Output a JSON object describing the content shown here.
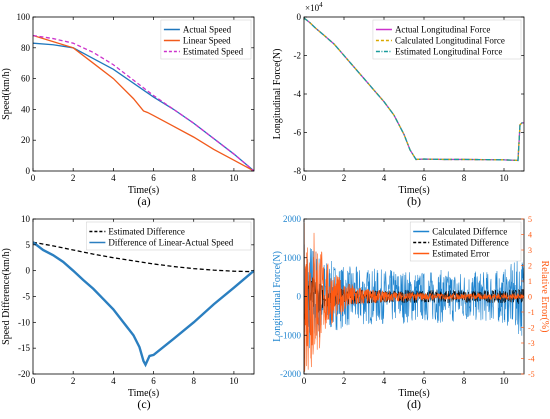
{
  "colors": {
    "actual": "#1f77bd",
    "linear": "#f15a1c",
    "estimated_speed": "#cc33cc",
    "force_actual": "#cc33cc",
    "force_calc": "#d9a800",
    "force_est": "#1a9c9c",
    "diff_est": "#000000",
    "diff_lin": "#2b7fc0",
    "d_calc": "#1f84cf",
    "d_est": "#000000",
    "d_err": "#ff5a12",
    "axis_left_d": "#1f84cf",
    "axis_right_d": "#ff5a12"
  },
  "chart_data": [
    {
      "id": "a",
      "type": "line",
      "caption": "(a)",
      "xlabel": "Time(s)",
      "ylabel": "Speed(km/h)",
      "xlim": [
        0,
        11
      ],
      "ylim": [
        0,
        100
      ],
      "xticks": [
        0,
        2,
        4,
        6,
        8,
        10
      ],
      "yticks": [
        0,
        20,
        40,
        60,
        80,
        100
      ],
      "legend_position": "top-right",
      "series": [
        {
          "name": "Actual Speed",
          "style": "solid",
          "color_key": "actual",
          "x": [
            0,
            1,
            2,
            3,
            4,
            5,
            6,
            7,
            8,
            9,
            10,
            11
          ],
          "y": [
            83,
            82,
            80,
            73,
            66,
            57,
            48,
            40,
            31,
            21,
            11,
            0
          ]
        },
        {
          "name": "Linear Speed",
          "style": "solid",
          "color_key": "linear",
          "x": [
            0,
            1,
            2,
            3,
            4,
            5,
            5.5,
            5.7,
            6,
            7,
            8,
            9,
            10,
            11
          ],
          "y": [
            88,
            84,
            80,
            70,
            60,
            47,
            39,
            38,
            36,
            29,
            22,
            14,
            7,
            0
          ]
        },
        {
          "name": "Estimated Speed",
          "style": "dashed",
          "color_key": "estimated_speed",
          "x": [
            0,
            1,
            2,
            3,
            4,
            5,
            6,
            7,
            8,
            9,
            10,
            11
          ],
          "y": [
            88,
            86,
            83,
            77,
            69,
            59,
            49,
            40,
            31,
            21,
            11,
            0
          ]
        }
      ]
    },
    {
      "id": "b",
      "type": "line",
      "caption": "(b)",
      "xlabel": "Time(s)",
      "ylabel": "Longitudinal Force(N)",
      "multiplier": "×10",
      "multiplier_exp": "4",
      "xlim": [
        0,
        11
      ],
      "ylim": [
        -8,
        0
      ],
      "xticks": [
        0,
        2,
        4,
        6,
        8,
        10
      ],
      "yticks": [
        -8,
        -6,
        -4,
        -2,
        0
      ],
      "legend_position": "top-right",
      "series": [
        {
          "name": "Actual Longitudinal Force",
          "style": "solid",
          "color_key": "force_actual",
          "x": [
            0,
            0.3,
            0.6,
            1,
            1.5,
            2,
            2.5,
            3,
            3.5,
            4,
            4.5,
            5,
            5.3,
            5.6,
            6,
            7,
            8,
            9,
            10,
            10.7,
            10.8,
            10.9,
            11
          ],
          "y": [
            -0.05,
            -0.3,
            -0.6,
            -0.95,
            -1.4,
            -2.0,
            -2.6,
            -3.2,
            -3.8,
            -4.4,
            -5.1,
            -6.1,
            -6.9,
            -7.4,
            -7.38,
            -7.4,
            -7.4,
            -7.41,
            -7.42,
            -7.45,
            -5.6,
            -5.5,
            -5.5
          ]
        },
        {
          "name": "Calculated Longitudinal Force",
          "style": "dashed",
          "color_key": "force_calc",
          "x": [
            0,
            0.3,
            0.6,
            1,
            1.5,
            2,
            2.5,
            3,
            3.5,
            4,
            4.5,
            5,
            5.3,
            5.6,
            6,
            7,
            8,
            9,
            10,
            10.7,
            10.8,
            10.9,
            11
          ],
          "y": [
            -0.05,
            -0.3,
            -0.6,
            -0.95,
            -1.4,
            -2.0,
            -2.6,
            -3.2,
            -3.8,
            -4.4,
            -5.1,
            -6.1,
            -6.9,
            -7.4,
            -7.38,
            -7.4,
            -7.4,
            -7.41,
            -7.42,
            -7.45,
            -5.6,
            -5.5,
            -5.5
          ]
        },
        {
          "name": "Estimated Longitudinal Force",
          "style": "dashdot",
          "color_key": "force_est",
          "x": [
            0,
            0.3,
            0.6,
            1,
            1.5,
            2,
            2.5,
            3,
            3.5,
            4,
            4.5,
            5,
            5.3,
            5.6,
            6,
            7,
            8,
            9,
            10,
            10.7,
            10.8,
            10.9,
            11
          ],
          "y": [
            -0.05,
            -0.3,
            -0.6,
            -0.95,
            -1.4,
            -2.0,
            -2.6,
            -3.2,
            -3.8,
            -4.4,
            -5.1,
            -6.1,
            -6.9,
            -7.4,
            -7.38,
            -7.4,
            -7.4,
            -7.41,
            -7.42,
            -7.45,
            -5.6,
            -5.5,
            -5.5
          ]
        }
      ]
    },
    {
      "id": "c",
      "type": "line",
      "caption": "(c)",
      "xlabel": "Time(s)",
      "ylabel": "Speed Difference(km/h)",
      "xlim": [
        0,
        11
      ],
      "ylim": [
        -20,
        10
      ],
      "xticks": [
        0,
        2,
        4,
        6,
        8,
        10
      ],
      "yticks": [
        -20,
        -15,
        -10,
        -5,
        0,
        5,
        10
      ],
      "legend_position": "top-right",
      "series": [
        {
          "name": "Estimated Difference",
          "style": "dashed",
          "color_key": "diff_est",
          "x": [
            0,
            1,
            2,
            3,
            4,
            5,
            6,
            7,
            8,
            9,
            10,
            11
          ],
          "y": [
            5.5,
            4.8,
            4.0,
            3.2,
            2.5,
            1.9,
            1.3,
            0.8,
            0.4,
            0.1,
            -0.1,
            -0.2
          ]
        },
        {
          "name": "Difference of Linear-Actual Speed",
          "style": "solid",
          "color_key": "diff_lin",
          "x": [
            0,
            0.5,
            1,
            1.5,
            2,
            2.5,
            3,
            3.5,
            4,
            4.5,
            5,
            5.3,
            5.5,
            5.6,
            5.8,
            6,
            7,
            8,
            9,
            10,
            11
          ],
          "y": [
            5.5,
            4.0,
            3.0,
            1.7,
            0,
            -1.8,
            -3.5,
            -5.5,
            -7.5,
            -10,
            -12.5,
            -14.8,
            -17.5,
            -18.2,
            -16.5,
            -16.3,
            -13.2,
            -10,
            -6.5,
            -3.3,
            0
          ]
        }
      ]
    },
    {
      "id": "d",
      "type": "line",
      "caption": "(d)",
      "xlabel": "Time(s)",
      "ylabel": "Longitudinal Force(N)",
      "y2label": "Relative Error(%)",
      "xlim": [
        0,
        11
      ],
      "ylim": [
        -2000,
        2000
      ],
      "y2lim": [
        -5,
        5
      ],
      "xticks": [
        0,
        2,
        4,
        6,
        8,
        10
      ],
      "yticks": [
        -2000,
        -1000,
        0,
        1000,
        2000
      ],
      "y2ticks": [
        -5,
        -4,
        -3,
        -2,
        -1,
        0,
        1,
        2,
        3,
        4,
        5
      ],
      "legend_position": "top-right",
      "series": [
        {
          "name": "Calculated Differnce",
          "style": "noisy",
          "color_key": "d_calc",
          "envelope_x": [
            0,
            0.5,
            1,
            2,
            3,
            4,
            5,
            6,
            7,
            8,
            9,
            10,
            11
          ],
          "envelope_y": [
            1600,
            1400,
            1000,
            800,
            750,
            700,
            700,
            650,
            700,
            650,
            650,
            700,
            1100
          ]
        },
        {
          "name": "Estimated Difference",
          "style": "noisy-dashed",
          "color_key": "d_est",
          "envelope_x": [
            0,
            0.5,
            1,
            2,
            3,
            4,
            5,
            6,
            7,
            8,
            9,
            10,
            11
          ],
          "envelope_y": [
            600,
            500,
            300,
            200,
            180,
            170,
            170,
            160,
            170,
            160,
            160,
            170,
            200
          ]
        },
        {
          "name": "Estimated Error",
          "style": "noisy",
          "color_key": "d_err",
          "axis": "right",
          "envelope_x": [
            0,
            0.2,
            0.5,
            0.8,
            1,
            1.5,
            2,
            3,
            4,
            5,
            6,
            7,
            8,
            9,
            10,
            11
          ],
          "envelope_y": [
            5,
            5,
            4.8,
            3.5,
            2.6,
            1.6,
            1.0,
            0.55,
            0.35,
            0.3,
            0.25,
            0.2,
            0.2,
            0.2,
            0.2,
            0.2
          ]
        }
      ]
    }
  ]
}
